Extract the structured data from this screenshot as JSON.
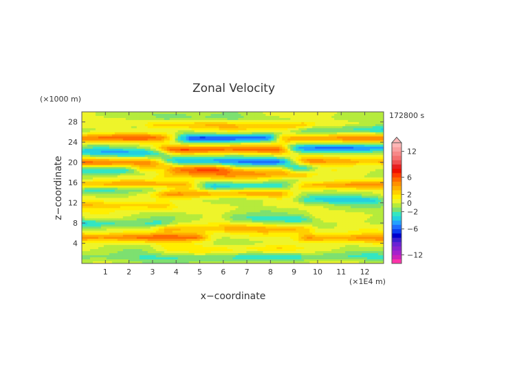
{
  "chart_data": {
    "type": "heatmap",
    "title": "Zonal Velocity",
    "xlabel": "x−coordinate",
    "ylabel": "z−coordinate",
    "x_units": "(×1E4 m)",
    "y_units": "(×1000 m)",
    "time_label": "172800 s",
    "xlim": [
      0,
      12.8
    ],
    "ylim": [
      0,
      30
    ],
    "x_ticks": [
      1,
      2,
      3,
      4,
      5,
      6,
      7,
      8,
      9,
      10,
      11,
      12
    ],
    "y_ticks": [
      4,
      8,
      12,
      16,
      20,
      24,
      28
    ],
    "colorbar": {
      "levels": [
        -14,
        -13,
        -12,
        -11,
        -10,
        -9,
        -8,
        -7,
        -6,
        -5,
        -4,
        -3,
        -2,
        -1,
        0,
        1,
        2,
        3,
        4,
        5,
        6,
        7,
        8,
        9,
        10,
        11,
        12,
        13,
        14
      ],
      "colors": [
        "#ff33aa",
        "#cc22bb",
        "#a622cc",
        "#8a22d0",
        "#6a22d4",
        "#3a1fd0",
        "#0000cd",
        "#0b3df0",
        "#1e6cff",
        "#23a0ff",
        "#22d0e0",
        "#33e6c2",
        "#7de070",
        "#b5eb3c",
        "#eef42a",
        "#ffef00",
        "#ffcf00",
        "#ffb000",
        "#ff9000",
        "#ff6a00",
        "#ff3c00",
        "#ee1000",
        "#e82020",
        "#ef5050",
        "#f47070",
        "#f78888",
        "#f9a0a0",
        "#ffb6b6"
      ],
      "tick_labels": [
        "12",
        "6",
        "2",
        "0",
        "−2",
        "−6",
        "−12"
      ],
      "tick_values": [
        12,
        6,
        2,
        0,
        -2,
        -6,
        -12
      ]
    },
    "bands": [
      {
        "z": 1.2,
        "x": [
          0,
          12.8
        ],
        "amp": -2.0
      },
      {
        "z": 3.0,
        "x": [
          4,
          8
        ],
        "amp": 1.5
      },
      {
        "z": 5.2,
        "x": [
          0,
          4.5
        ],
        "amp": 5.0
      },
      {
        "z": 5.0,
        "x": [
          10,
          12.8
        ],
        "amp": 4.5
      },
      {
        "z": 6.8,
        "x": [
          4,
          9
        ],
        "amp": 3.5
      },
      {
        "z": 7.8,
        "x": [
          0,
          3
        ],
        "amp": -2.5
      },
      {
        "z": 8.8,
        "x": [
          7,
          9
        ],
        "amp": -2.5
      },
      {
        "z": 11.5,
        "x": [
          0.5,
          3
        ],
        "amp": 3.0
      },
      {
        "z": 12.5,
        "x": [
          10,
          12
        ],
        "amp": -3.5
      },
      {
        "z": 13.8,
        "x": [
          4,
          8
        ],
        "amp": 3.5
      },
      {
        "z": 14.8,
        "x": [
          0.5,
          3
        ],
        "amp": -2.5
      },
      {
        "z": 15.2,
        "x": [
          6,
          8
        ],
        "amp": -3.0
      },
      {
        "z": 15.5,
        "x": [
          0,
          4
        ],
        "amp": 4.0
      },
      {
        "z": 15.5,
        "x": [
          10,
          12.8
        ],
        "amp": 3.5
      },
      {
        "z": 17.5,
        "x": [
          4,
          9
        ],
        "amp": 3.0
      },
      {
        "z": 18.5,
        "x": [
          0,
          3
        ],
        "amp": -3.5
      },
      {
        "z": 18.6,
        "x": [
          3,
          8
        ],
        "amp": 5.5
      },
      {
        "z": 18.8,
        "x": [
          7,
          9
        ],
        "amp": -3.5
      },
      {
        "z": 20.0,
        "x": [
          0,
          3
        ],
        "amp": 5.0
      },
      {
        "z": 20.2,
        "x": [
          4,
          8
        ],
        "amp": -5.0
      },
      {
        "z": 20.2,
        "x": [
          10,
          12.8
        ],
        "amp": 4.0
      },
      {
        "z": 22.0,
        "x": [
          0,
          3
        ],
        "amp": -4.0
      },
      {
        "z": 22.5,
        "x": [
          4,
          8
        ],
        "amp": 5.5
      },
      {
        "z": 22.8,
        "x": [
          9.5,
          12.8
        ],
        "amp": -4.5
      },
      {
        "z": 24.8,
        "x": [
          0,
          3.5
        ],
        "amp": 5.0
      },
      {
        "z": 24.8,
        "x": [
          4.5,
          7.5
        ],
        "amp": -5.5
      },
      {
        "z": 24.8,
        "x": [
          9,
          12.8
        ],
        "amp": 4.0
      },
      {
        "z": 26.5,
        "x": [
          10,
          12.8
        ],
        "amp": -2.5
      },
      {
        "z": 27.3,
        "x": [
          3.5,
          9
        ],
        "amp": 3.0
      },
      {
        "z": 29.0,
        "x": [
          4,
          6
        ],
        "amp": -2.0
      }
    ]
  }
}
